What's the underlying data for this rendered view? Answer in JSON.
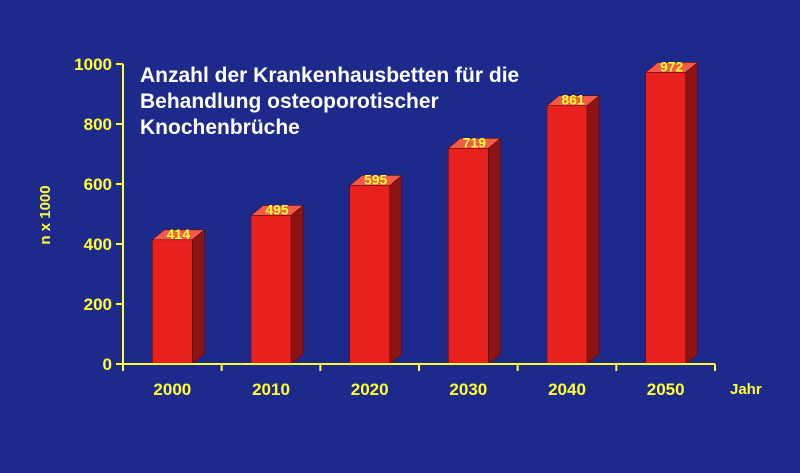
{
  "chart_data": {
    "type": "bar",
    "title_lines": [
      "Anzahl der Krankenhausbetten für die",
      "Behandlung osteoporotischer",
      "Knochenbrüche"
    ],
    "ylabel": "n x 1000",
    "xlabel": "Jahr",
    "categories": [
      "2000",
      "2010",
      "2020",
      "2030",
      "2040",
      "2050"
    ],
    "values": [
      414,
      495,
      595,
      719,
      861,
      972
    ],
    "ylim": [
      0,
      1000
    ],
    "yticks": [
      0,
      200,
      400,
      600,
      800,
      1000
    ],
    "grid": false,
    "style": "3d",
    "colors": {
      "background": "#1d2a8c",
      "bar_front": "#e8211f",
      "bar_side": "#8c1414",
      "bar_top": "#f25a4a",
      "axis": "#ffff33",
      "title": "#ffffff",
      "labels": "#ffff33"
    }
  }
}
